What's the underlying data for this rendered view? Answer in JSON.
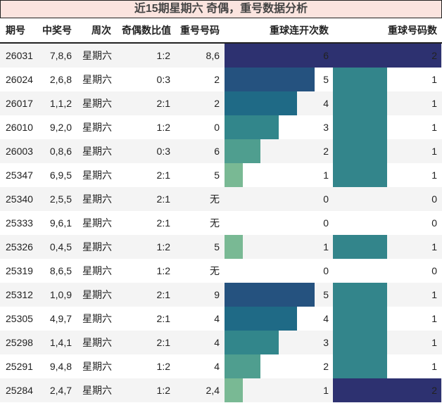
{
  "title": "近15期星期六 奇偶，重号数据分析",
  "headers": {
    "period": "期号",
    "numbers": "中奖号",
    "weekday": "周次",
    "odd_even": "奇偶数比值",
    "repeat_numbers": "重号号码",
    "repeat_streak": "重球连开次数",
    "repeat_count": "重球号码数"
  },
  "colors": {
    "title_bg": "#fbe4df",
    "row_alt": "#f4f4f4",
    "streak_6": "#2d3170",
    "streak_5": "#25527f",
    "streak_4": "#1f6a86",
    "streak_3": "#32868b",
    "streak_2": "#4f9e8f",
    "streak_1": "#79b994",
    "count_1": "#33858b",
    "count_2": "#2d3170"
  },
  "rows": [
    {
      "period": "26031",
      "numbers": "7,8,6",
      "weekday": "星期六",
      "odd_even": "1:2",
      "repeat_numbers": "8,6",
      "repeat_streak": "6",
      "repeat_count": "2"
    },
    {
      "period": "26024",
      "numbers": "2,6,8",
      "weekday": "星期六",
      "odd_even": "0:3",
      "repeat_numbers": "2",
      "repeat_streak": "5",
      "repeat_count": "1"
    },
    {
      "period": "26017",
      "numbers": "1,1,2",
      "weekday": "星期六",
      "odd_even": "2:1",
      "repeat_numbers": "2",
      "repeat_streak": "4",
      "repeat_count": "1"
    },
    {
      "period": "26010",
      "numbers": "9,2,0",
      "weekday": "星期六",
      "odd_even": "1:2",
      "repeat_numbers": "0",
      "repeat_streak": "3",
      "repeat_count": "1"
    },
    {
      "period": "26003",
      "numbers": "0,8,6",
      "weekday": "星期六",
      "odd_even": "0:3",
      "repeat_numbers": "6",
      "repeat_streak": "2",
      "repeat_count": "1"
    },
    {
      "period": "25347",
      "numbers": "6,9,5",
      "weekday": "星期六",
      "odd_even": "2:1",
      "repeat_numbers": "5",
      "repeat_streak": "1",
      "repeat_count": "1"
    },
    {
      "period": "25340",
      "numbers": "2,5,5",
      "weekday": "星期六",
      "odd_even": "2:1",
      "repeat_numbers": "无",
      "repeat_streak": "0",
      "repeat_count": "0"
    },
    {
      "period": "25333",
      "numbers": "9,6,1",
      "weekday": "星期六",
      "odd_even": "2:1",
      "repeat_numbers": "无",
      "repeat_streak": "0",
      "repeat_count": "0"
    },
    {
      "period": "25326",
      "numbers": "0,4,5",
      "weekday": "星期六",
      "odd_even": "1:2",
      "repeat_numbers": "5",
      "repeat_streak": "1",
      "repeat_count": "1"
    },
    {
      "period": "25319",
      "numbers": "8,6,5",
      "weekday": "星期六",
      "odd_even": "1:2",
      "repeat_numbers": "无",
      "repeat_streak": "0",
      "repeat_count": "0"
    },
    {
      "period": "25312",
      "numbers": "1,0,9",
      "weekday": "星期六",
      "odd_even": "2:1",
      "repeat_numbers": "9",
      "repeat_streak": "5",
      "repeat_count": "1"
    },
    {
      "period": "25305",
      "numbers": "4,9,7",
      "weekday": "星期六",
      "odd_even": "2:1",
      "repeat_numbers": "4",
      "repeat_streak": "4",
      "repeat_count": "1"
    },
    {
      "period": "25298",
      "numbers": "1,4,1",
      "weekday": "星期六",
      "odd_even": "2:1",
      "repeat_numbers": "4",
      "repeat_streak": "3",
      "repeat_count": "1"
    },
    {
      "period": "25291",
      "numbers": "9,4,8",
      "weekday": "星期六",
      "odd_even": "1:2",
      "repeat_numbers": "4",
      "repeat_streak": "2",
      "repeat_count": "1"
    },
    {
      "period": "25284",
      "numbers": "2,4,7",
      "weekday": "星期六",
      "odd_even": "1:2",
      "repeat_numbers": "2,4",
      "repeat_streak": "1",
      "repeat_count": "2"
    }
  ]
}
